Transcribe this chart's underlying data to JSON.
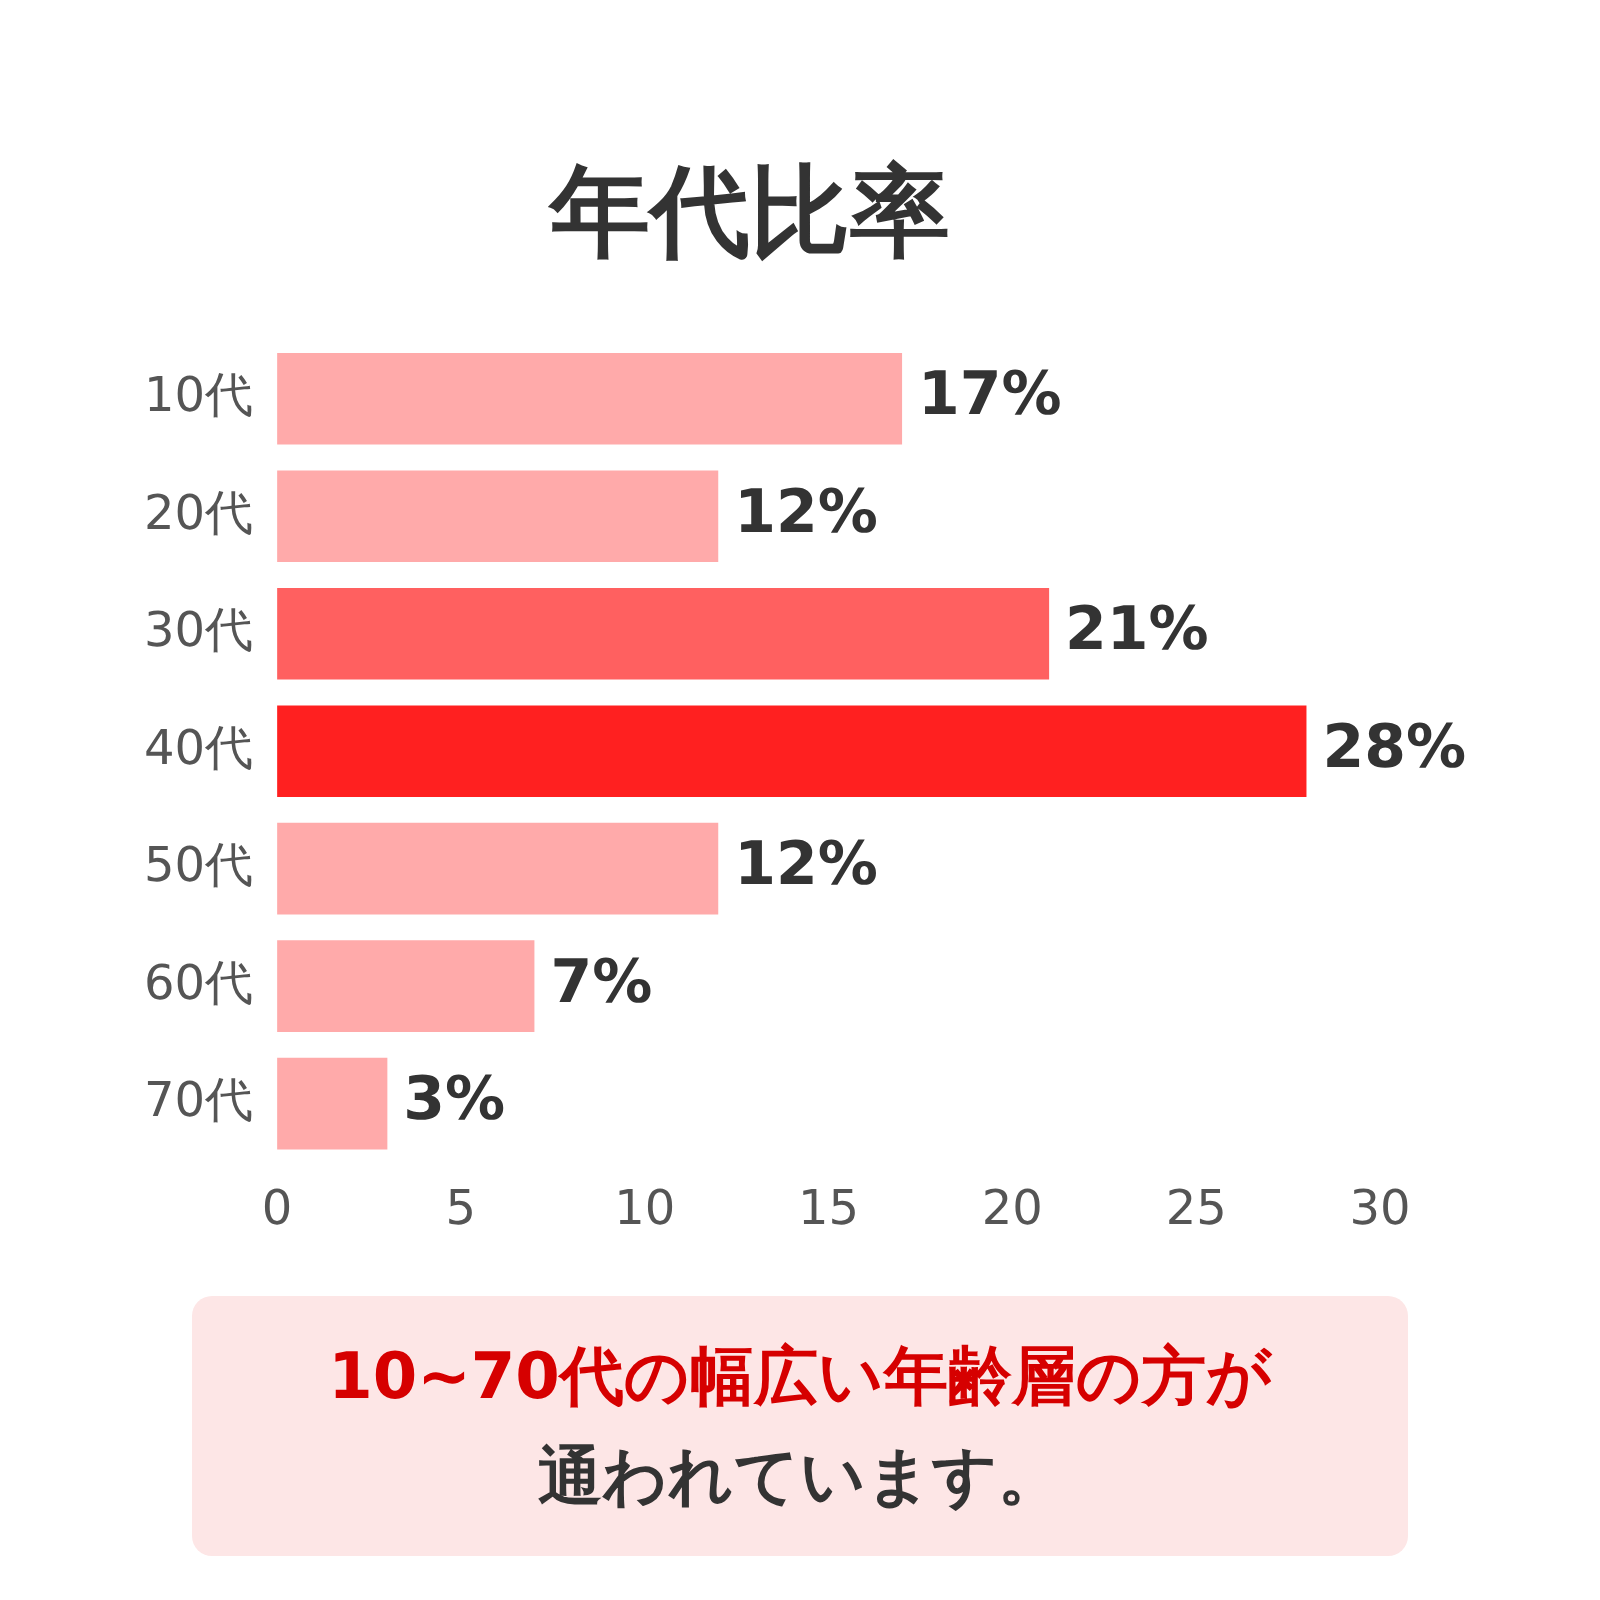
{
  "chart_data": {
    "type": "bar",
    "orientation": "horizontal",
    "title": "年代比率",
    "categories": [
      "10代",
      "20代",
      "30代",
      "40代",
      "50代",
      "60代",
      "70代"
    ],
    "values": [
      17,
      12,
      21,
      28,
      12,
      7,
      3
    ],
    "colors": [
      "#ffaaaa",
      "#ffaaaa",
      "#ff6060",
      "#ff2020",
      "#ffaaaa",
      "#ffaaaa",
      "#ffaaaa"
    ],
    "value_labels": [
      "17%",
      "12%",
      "21%",
      "28%",
      "12%",
      "7%",
      "3%"
    ],
    "xlim": [
      0,
      30
    ],
    "xticks": [
      0,
      5,
      10,
      15,
      20,
      25,
      30
    ],
    "grid": false,
    "legend": false,
    "annotations": [
      "10~70代の幅広い年齢層の方が",
      "通われています。"
    ]
  }
}
